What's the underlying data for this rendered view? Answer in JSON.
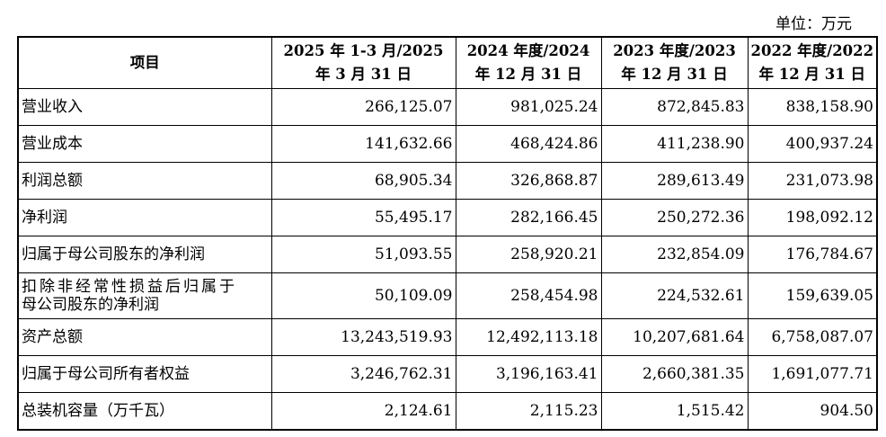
{
  "unit_label": "单位：万元",
  "table": {
    "headers": [
      {
        "line1": "项目",
        "line2": ""
      },
      {
        "line1": "2025 年 1-3 月/2025",
        "line2": "年 3 月 31 日"
      },
      {
        "line1": "2024 年度/2024",
        "line2": "年 12 月 31 日"
      },
      {
        "line1": "2023 年度/2023",
        "line2": "年 12 月 31 日"
      },
      {
        "line1": "2022 年度/2022",
        "line2": "年 12 月 31 日"
      }
    ],
    "rows": [
      {
        "item": "营业收入",
        "item2": "",
        "values": [
          "266,125.07",
          "981,025.24",
          "872,845.83",
          "838,158.90"
        ]
      },
      {
        "item": "营业成本",
        "item2": "",
        "values": [
          "141,632.66",
          "468,424.86",
          "411,238.90",
          "400,937.24"
        ]
      },
      {
        "item": "利润总额",
        "item2": "",
        "values": [
          "68,905.34",
          "326,868.87",
          "289,613.49",
          "231,073.98"
        ]
      },
      {
        "item": "净利润",
        "item2": "",
        "values": [
          "55,495.17",
          "282,166.45",
          "250,272.36",
          "198,092.12"
        ]
      },
      {
        "item": "归属于母公司股东的净利润",
        "item2": "",
        "values": [
          "51,093.55",
          "258,920.21",
          "232,854.09",
          "176,784.67"
        ]
      },
      {
        "item": "扣除非经常性损益后归属于",
        "item2": "母公司股东的净利润",
        "values": [
          "50,109.09",
          "258,454.98",
          "224,532.61",
          "159,639.05"
        ]
      },
      {
        "item": "资产总额",
        "item2": "",
        "values": [
          "13,243,519.93",
          "12,492,113.18",
          "10,207,681.64",
          "6,758,087.07"
        ]
      },
      {
        "item": "归属于母公司所有者权益",
        "item2": "",
        "values": [
          "3,246,762.31",
          "3,196,163.41",
          "2,660,381.35",
          "1,691,077.71"
        ]
      },
      {
        "item": "总装机容量（万千瓦）",
        "item2": "",
        "values": [
          "2,124.61",
          "2,115.23",
          "1,515.42",
          "904.50"
        ]
      }
    ]
  }
}
